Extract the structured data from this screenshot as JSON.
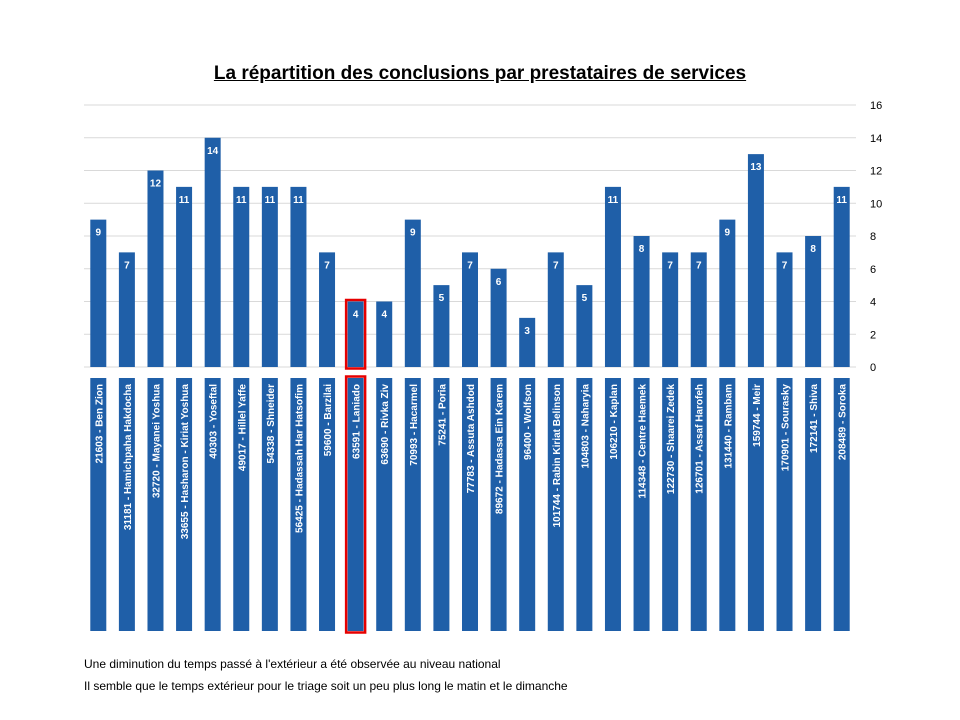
{
  "chart_data": {
    "type": "bar",
    "title": "La répartition des conclusions par prestataires de services",
    "categories": [
      "21603 - Ben Zion",
      "31181 - Hamichpaha Hakdocha",
      "32720 - Mayanei Yoshua",
      "33655 - Hasharon - Kiriat Yoshua",
      "40303 - Yoseftal",
      "49017 - Hillel Yaffe",
      "54338 - Shneider",
      "56425 - Hadassah Har Hatsofim",
      "59600 - Barzilai",
      "63591 - Laniado",
      "63690 - Rivka Ziv",
      "70993 - Hacarmel",
      "75241 - Poria",
      "77783 - Assuta Ashdod",
      "89672 - Hadassa Ein Karem",
      "96400 - Wolfson",
      "101744 - Rabin Kiriat Belinson",
      "104803 - Naharyia",
      "106210 - Kaplan",
      "114348 - Centre Haemek",
      "122730 - Shaarei Zedek",
      "126701 - Assaf Harofeh",
      "131440 - Rambam",
      "159744 - Meir",
      "170901 - Sourasky",
      "172141 - Shiva",
      "208489 - Soroka"
    ],
    "values": [
      9,
      7,
      12,
      11,
      14,
      11,
      11,
      11,
      7,
      4,
      4,
      9,
      5,
      7,
      6,
      3,
      7,
      5,
      11,
      8,
      7,
      7,
      9,
      13,
      7,
      8,
      11
    ],
    "highlighted_index": 9,
    "ylim": [
      0,
      16
    ],
    "yticks": [
      0,
      2,
      4,
      6,
      8,
      10,
      12,
      14,
      16
    ],
    "y_axis_position": "right",
    "grid": true,
    "legend": "none",
    "colors": {
      "bar": "#1f5fa8",
      "highlight": "#e60000",
      "grid": "#d9d9d9",
      "value_label": "#ffffff"
    }
  },
  "notes": [
    "Une diminution du temps passé à l'extérieur a été observée au  niveau national",
    "Il semble que le temps extérieur pour le triage soit un peu plus long  le matin et le dimanche"
  ]
}
